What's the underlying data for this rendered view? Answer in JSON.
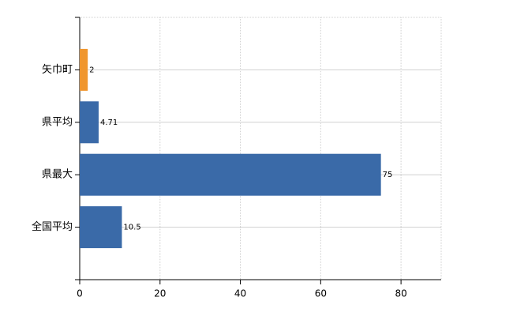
{
  "chart_data": {
    "type": "bar",
    "orientation": "horizontal",
    "categories": [
      "矢巾町",
      "県平均",
      "県最大",
      "全国平均"
    ],
    "values": [
      2,
      4.71,
      75,
      10.5
    ],
    "colors": [
      "#f0962e",
      "#3a6aa8",
      "#3a6aa8",
      "#3a6aa8"
    ],
    "xlim": [
      0,
      90
    ],
    "xticks": [
      0,
      20,
      40,
      60,
      80
    ],
    "grid": true
  }
}
